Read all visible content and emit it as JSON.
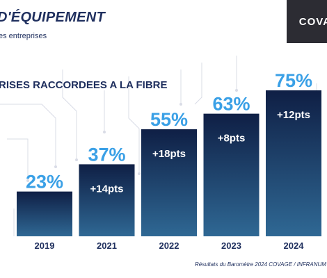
{
  "header": {
    "title": "D'ÉQUIPEMENT",
    "subtitle": "es entreprises"
  },
  "logo": {
    "text": "COVA"
  },
  "colors": {
    "bar_top": "#0f1f45",
    "bar_bottom": "#2f6894",
    "value_label": "#3aa0e6",
    "navy_text": "#1f2f5e"
  },
  "chart_data": {
    "type": "bar",
    "title": "RISES RACCORDEES A LA FIBRE",
    "categories": [
      "2019",
      "2021",
      "2022",
      "2023",
      "2024"
    ],
    "values": [
      23,
      37,
      55,
      63,
      75
    ],
    "value_labels": [
      "23%",
      "37%",
      "55%",
      "63%",
      "75%"
    ],
    "deltas": [
      "",
      "+14pts",
      "+18pts",
      "+8pts",
      "+12pts"
    ],
    "ylim": [
      0,
      100
    ],
    "grid": false
  },
  "source": "Résultats du Baromètre 2024 COVAGE / INFRANUM"
}
